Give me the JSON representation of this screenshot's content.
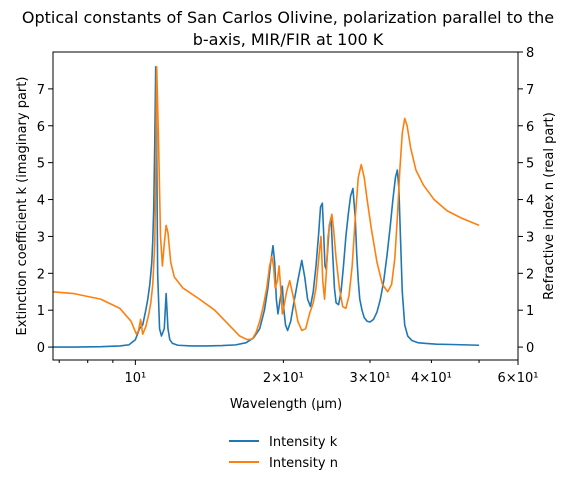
{
  "chart_data": {
    "type": "line",
    "title_lines": [
      "Optical constants of San Carlos Olivine, polarization parallel to the",
      "b-axis, MIR/FIR at 100 K"
    ],
    "xlabel": "Wavelength (μm)",
    "ylabel_left": "Extinction coefficient k (imaginary part)",
    "ylabel_right": "Refractive index n (real part)",
    "x_scale": "log",
    "xlim": [
      6.8,
      60
    ],
    "ylim_left": [
      -0.35,
      8.0
    ],
    "ylim_right": [
      -0.35,
      8.0
    ],
    "x_major_ticks": [
      {
        "value": 10,
        "label": "10¹"
      },
      {
        "value": 60,
        "label": "6×10¹"
      }
    ],
    "x_minor_ticks": [
      {
        "value": 20,
        "label": "2×10¹"
      },
      {
        "value": 30,
        "label": "3×10¹"
      },
      {
        "value": 40,
        "label": "4×10¹"
      },
      {
        "value": 50,
        "label": ""
      },
      {
        "value": 7,
        "label": ""
      },
      {
        "value": 8,
        "label": ""
      },
      {
        "value": 9,
        "label": ""
      }
    ],
    "y_ticks_left": [
      0,
      1,
      2,
      3,
      4,
      5,
      6,
      7
    ],
    "y_ticks_right": [
      0,
      1,
      2,
      3,
      4,
      5,
      6,
      7,
      8
    ],
    "grid": false,
    "legend_position": "below",
    "series": [
      {
        "name": "Intensity k",
        "color": "#1f77b4",
        "axis": "left",
        "x": [
          6.8,
          7.5,
          8.5,
          9.3,
          9.7,
          10.0,
          10.2,
          10.35,
          10.5,
          10.6,
          10.7,
          10.8,
          10.85,
          10.9,
          10.95,
          11.0,
          11.05,
          11.1,
          11.2,
          11.3,
          11.45,
          11.55,
          11.65,
          11.75,
          11.9,
          12.2,
          13.0,
          14.0,
          15.0,
          16.0,
          16.8,
          17.4,
          17.9,
          18.3,
          18.6,
          18.85,
          19.05,
          19.2,
          19.35,
          19.5,
          19.7,
          19.9,
          20.05,
          20.2,
          20.4,
          20.7,
          21.0,
          21.4,
          21.8,
          22.1,
          22.4,
          22.7,
          23.0,
          23.3,
          23.6,
          23.8,
          24.0,
          24.15,
          24.3,
          24.45,
          24.6,
          24.8,
          25.0,
          25.2,
          25.4,
          25.6,
          25.9,
          26.2,
          26.5,
          26.8,
          27.1,
          27.4,
          27.7,
          28.0,
          28.2,
          28.4,
          28.6,
          28.9,
          29.2,
          29.6,
          30.0,
          30.5,
          31.0,
          31.5,
          32.0,
          32.5,
          33.0,
          33.4,
          33.8,
          34.1,
          34.35,
          34.6,
          34.9,
          35.3,
          35.8,
          36.5,
          37.5,
          39.0,
          41.0,
          44.0,
          47.0,
          50.0
        ],
        "y": [
          0.0,
          0.0,
          0.01,
          0.03,
          0.06,
          0.2,
          0.5,
          0.6,
          1.0,
          1.3,
          1.7,
          2.3,
          2.9,
          3.8,
          5.5,
          7.6,
          5.5,
          2.0,
          0.5,
          0.3,
          0.5,
          1.45,
          0.5,
          0.2,
          0.1,
          0.05,
          0.03,
          0.03,
          0.04,
          0.06,
          0.12,
          0.25,
          0.5,
          1.0,
          1.6,
          2.3,
          2.75,
          2.3,
          1.3,
          0.9,
          1.3,
          1.65,
          1.0,
          0.6,
          0.45,
          0.7,
          1.2,
          1.8,
          2.35,
          1.9,
          1.3,
          1.1,
          1.5,
          2.2,
          3.1,
          3.8,
          3.9,
          3.1,
          2.2,
          2.1,
          2.6,
          3.3,
          3.5,
          2.5,
          1.6,
          1.2,
          1.15,
          1.5,
          2.2,
          3.0,
          3.6,
          4.1,
          4.3,
          3.5,
          2.5,
          1.8,
          1.3,
          1.0,
          0.8,
          0.7,
          0.68,
          0.75,
          0.95,
          1.3,
          1.8,
          2.5,
          3.3,
          4.0,
          4.6,
          4.8,
          4.3,
          3.0,
          1.5,
          0.6,
          0.3,
          0.18,
          0.12,
          0.1,
          0.08,
          0.07,
          0.06,
          0.05
        ]
      },
      {
        "name": "Intensity n",
        "color": "#ff7f0e",
        "axis": "right",
        "x": [
          6.8,
          7.5,
          8.5,
          9.3,
          9.8,
          10.05,
          10.15,
          10.25,
          10.35,
          10.5,
          10.65,
          10.75,
          10.85,
          10.95,
          11.0,
          11.05,
          11.15,
          11.25,
          11.35,
          11.45,
          11.55,
          11.65,
          11.8,
          12.0,
          12.5,
          13.5,
          14.5,
          15.5,
          16.3,
          16.9,
          17.3,
          17.6,
          17.9,
          18.2,
          18.5,
          18.75,
          18.95,
          19.1,
          19.25,
          19.45,
          19.6,
          19.75,
          19.9,
          20.05,
          20.3,
          20.6,
          21.0,
          21.4,
          21.8,
          22.2,
          22.6,
          23.0,
          23.3,
          23.6,
          23.85,
          24.05,
          24.25,
          24.45,
          24.65,
          24.9,
          25.1,
          25.3,
          25.6,
          26.0,
          26.4,
          26.8,
          27.2,
          27.6,
          28.0,
          28.4,
          28.8,
          29.2,
          29.6,
          30.2,
          31.0,
          31.8,
          32.6,
          33.2,
          33.7,
          34.1,
          34.5,
          34.9,
          35.3,
          35.7,
          36.3,
          37.2,
          38.5,
          40.5,
          43.0,
          46.0,
          50.0
        ],
        "y": [
          1.5,
          1.45,
          1.3,
          1.05,
          0.7,
          0.35,
          0.45,
          0.75,
          0.35,
          0.55,
          0.9,
          1.2,
          1.7,
          2.8,
          4.5,
          7.6,
          5.5,
          3.0,
          2.2,
          2.8,
          3.3,
          3.1,
          2.3,
          1.9,
          1.6,
          1.3,
          1.0,
          0.6,
          0.3,
          0.2,
          0.22,
          0.4,
          0.7,
          1.1,
          1.6,
          2.2,
          2.45,
          2.2,
          1.6,
          1.8,
          2.2,
          1.6,
          0.9,
          1.1,
          1.5,
          1.8,
          1.3,
          0.7,
          0.45,
          0.5,
          0.9,
          1.2,
          1.6,
          2.4,
          3.0,
          1.8,
          1.3,
          2.0,
          3.0,
          3.4,
          3.6,
          3.2,
          2.4,
          1.6,
          1.1,
          1.05,
          1.4,
          2.2,
          3.5,
          4.6,
          4.95,
          4.6,
          4.0,
          3.2,
          2.3,
          1.7,
          1.5,
          1.7,
          2.4,
          3.5,
          4.8,
          5.8,
          6.2,
          6.0,
          5.4,
          4.8,
          4.4,
          4.0,
          3.7,
          3.5,
          3.3
        ]
      }
    ]
  }
}
